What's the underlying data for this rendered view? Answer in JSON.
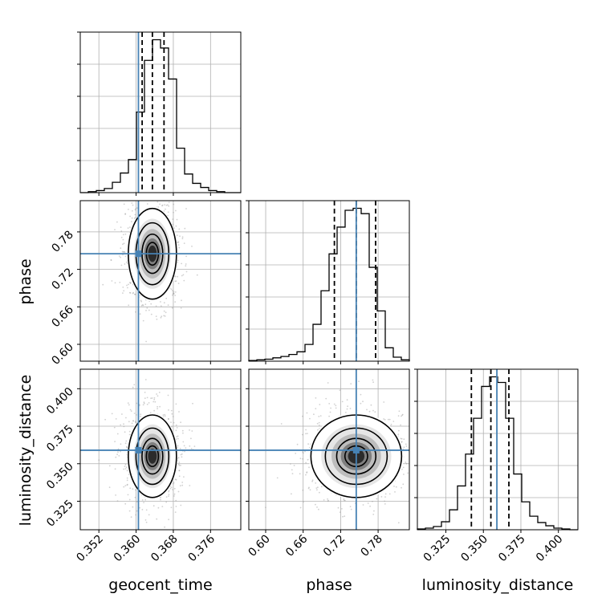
{
  "axis_labels": {
    "geocent_time": "geocent_time",
    "phase": "phase",
    "luminosity_distance": "luminosity_distance"
  },
  "colors": {
    "truth": "#4682b4",
    "hist": "#000000",
    "grid": "#b0b0b0",
    "points": "#999999"
  },
  "chart_data": {
    "type": "corner",
    "parameters": [
      "geocent_time",
      "phase",
      "luminosity_distance"
    ],
    "truths": {
      "geocent_time": 0.3605,
      "phase": 0.745,
      "luminosity_distance": 0.359
    },
    "quantiles": {
      "geocent_time": [
        0.3613,
        0.3635,
        0.366
      ],
      "phase": [
        0.71,
        0.745,
        0.776
      ],
      "luminosity_distance": [
        0.342,
        0.355,
        0.367
      ]
    },
    "ranges": {
      "geocent_time": [
        0.348,
        0.3825
      ],
      "phase": [
        0.573,
        0.83
      ],
      "luminosity_distance": [
        0.306,
        0.413
      ]
    },
    "ticks": {
      "geocent_time": {
        "values": [
          0.352,
          0.36,
          0.368,
          0.376
        ],
        "labels": [
          "0.352",
          "0.360",
          "0.368",
          "0.376"
        ]
      },
      "phase": {
        "values": [
          0.6,
          0.66,
          0.72,
          0.78
        ],
        "labels": [
          "0.60",
          "0.66",
          "0.72",
          "0.78"
        ]
      },
      "luminosity_distance": {
        "values": [
          0.325,
          0.35,
          0.375,
          0.4
        ],
        "labels": [
          "0.325",
          "0.350",
          "0.375",
          "0.400"
        ]
      }
    },
    "histograms": {
      "geocent_time": [
        0,
        1,
        2,
        4,
        10,
        19,
        32,
        78,
        128,
        148,
        140,
        110,
        43,
        18,
        9,
        5,
        2,
        1,
        0,
        0
      ],
      "phase": [
        1,
        2,
        3,
        5,
        7,
        10,
        14,
        25,
        55,
        105,
        160,
        200,
        225,
        228,
        220,
        140,
        75,
        20,
        6,
        2
      ],
      "luminosity_distance": [
        1,
        2,
        4,
        10,
        25,
        55,
        95,
        140,
        180,
        192,
        185,
        140,
        70,
        35,
        17,
        9,
        5,
        2,
        1,
        0
      ]
    },
    "grid": true
  }
}
